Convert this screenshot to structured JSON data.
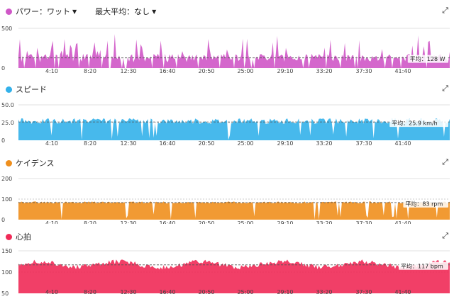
{
  "time_ticks": [
    "4:10",
    "8:20",
    "12:30",
    "16:40",
    "20:50",
    "25:00",
    "29:10",
    "33:20",
    "37:30",
    "41:40"
  ],
  "panels": [
    {
      "id": "power",
      "title": "パワー：ワット",
      "has_dropdown": true,
      "secondary_label": "最大平均：なし",
      "color": "#cf57c7",
      "y_ticks": [
        {
          "value": 500,
          "label": "500"
        },
        {
          "value": 0,
          "label": "0"
        }
      ],
      "y_min": 0,
      "y_max": 500,
      "average_value": 128,
      "average_label": "平均：128 W",
      "base": 128,
      "amp": 55,
      "spike_prob": 0.22,
      "spike_max": 260,
      "dips": false
    },
    {
      "id": "speed",
      "title": "スピード",
      "has_dropdown": false,
      "secondary_label": "",
      "color": "#33b1ea",
      "y_ticks": [
        {
          "value": 50,
          "label": "50.0"
        },
        {
          "value": 25,
          "label": "25.0"
        },
        {
          "value": 0,
          "label": "0"
        }
      ],
      "y_min": 0,
      "y_max": 50,
      "average_value": 25.9,
      "average_label": "平均：25.9 km/h",
      "base": 27,
      "amp": 4,
      "spike_prob": 0.0,
      "spike_max": 0,
      "dips": true
    },
    {
      "id": "cadence",
      "title": "ケイデンス",
      "has_dropdown": false,
      "secondary_label": "",
      "color": "#ef8f1d",
      "y_ticks": [
        {
          "value": 200,
          "label": "200"
        },
        {
          "value": 100,
          "label": "100"
        },
        {
          "value": 0,
          "label": "0"
        }
      ],
      "y_min": 0,
      "y_max": 200,
      "average_value": 83,
      "average_label": "平均：83 rpm",
      "base": 84,
      "amp": 5,
      "spike_prob": 0.0,
      "spike_max": 0,
      "dips": true
    },
    {
      "id": "heart_rate",
      "title": "心拍",
      "has_dropdown": false,
      "secondary_label": "",
      "color": "#f02a57",
      "y_ticks": [
        {
          "value": 150,
          "label": "150"
        },
        {
          "value": 100,
          "label": "100"
        },
        {
          "value": 50,
          "label": "50"
        }
      ],
      "y_min": 50,
      "y_max": 150,
      "average_value": 117,
      "average_label": "平均：117 bpm",
      "base": 118,
      "amp": 8,
      "spike_prob": 0.0,
      "spike_max": 0,
      "dips": false
    }
  ]
}
